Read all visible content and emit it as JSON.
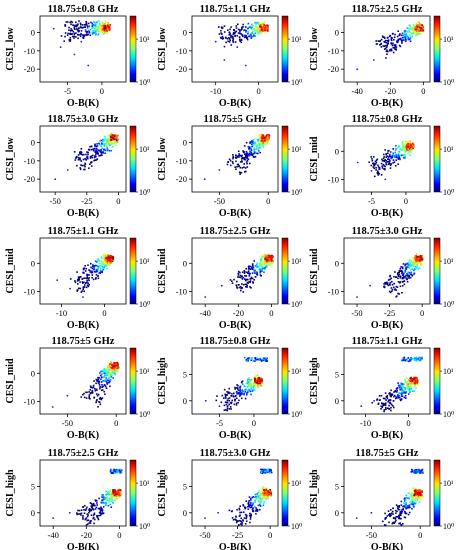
{
  "chart_data": [
    {
      "type": "heatmap",
      "title": "118.75±0.8 GHz",
      "xlabel": "O-B(K)",
      "ylabel": "CESI_low",
      "xticks": [
        -5,
        0
      ],
      "xlim": [
        -9,
        3.5
      ],
      "yticks": [
        0,
        -10,
        -20
      ],
      "ylim": [
        -27,
        9
      ],
      "colorbar_ticks": [
        "10¹",
        "10⁰"
      ],
      "colorbar_range": [
        1,
        70
      ],
      "colorscale": "jet",
      "hotspot": {
        "x": 0.5,
        "y": 3
      },
      "cloud_direction": {
        "x": -1,
        "y": -0.3
      },
      "scatter_points": [
        {
          "x": -3,
          "y": -5
        },
        {
          "x": -4,
          "y": -12
        },
        {
          "x": -6,
          "y": -8
        },
        {
          "x": -2,
          "y": -18
        },
        {
          "x": -7,
          "y": 2
        }
      ]
    },
    {
      "type": "heatmap",
      "title": "118.75±1.1 GHz",
      "xlabel": "O-B(K)",
      "ylabel": "CESI_low",
      "xticks": [
        -10,
        0
      ],
      "xlim": [
        -15.5,
        4.5
      ],
      "yticks": [
        0,
        -10,
        -20
      ],
      "ylim": [
        -27,
        9
      ],
      "colorbar_ticks": [
        "10¹",
        "10⁰"
      ],
      "colorbar_range": [
        1,
        70
      ],
      "colorscale": "jet",
      "hotspot": {
        "x": 1,
        "y": 3
      },
      "cloud_direction": {
        "x": -1,
        "y": -0.5
      },
      "scatter_points": [
        {
          "x": -5,
          "y": -8
        },
        {
          "x": -8,
          "y": -15
        },
        {
          "x": -3,
          "y": -18
        },
        {
          "x": -10,
          "y": -5
        }
      ]
    },
    {
      "type": "heatmap",
      "title": "118.75±2.5 GHz",
      "xlabel": "O-B(K)",
      "ylabel": "CESI_low",
      "xticks": [
        -40,
        -20,
        0
      ],
      "xlim": [
        -48,
        4
      ],
      "yticks": [
        0,
        -10,
        -20
      ],
      "ylim": [
        -27,
        9
      ],
      "colorbar_ticks": [
        "10¹",
        "10⁰"
      ],
      "colorbar_range": [
        1,
        70
      ],
      "colorscale": "jet",
      "hotspot": {
        "x": -3,
        "y": 3
      },
      "cloud_direction": {
        "x": -1,
        "y": -0.5
      },
      "scatter_points": [
        {
          "x": -30,
          "y": -15
        },
        {
          "x": -40,
          "y": -20
        },
        {
          "x": -20,
          "y": -10
        }
      ]
    },
    {
      "type": "heatmap",
      "title": "118.75±3.0 GHz",
      "xlabel": "O-B(K)",
      "ylabel": "CESI_low",
      "xticks": [
        -50,
        -25,
        0
      ],
      "xlim": [
        -62,
        6
      ],
      "yticks": [
        0,
        -10,
        -20
      ],
      "ylim": [
        -27,
        9
      ],
      "colorbar_ticks": [
        "10¹",
        "10⁰"
      ],
      "colorbar_range": [
        1,
        70
      ],
      "colorscale": "jet",
      "hotspot": {
        "x": -4,
        "y": 3
      },
      "cloud_direction": {
        "x": -1,
        "y": -0.5
      },
      "scatter_points": [
        {
          "x": -40,
          "y": -15
        },
        {
          "x": -50,
          "y": -20
        },
        {
          "x": -25,
          "y": -8
        }
      ]
    },
    {
      "type": "heatmap",
      "title": "118.75±5 GHz",
      "xlabel": "O-B(K)",
      "ylabel": "CESI_low",
      "xticks": [
        -50,
        0
      ],
      "xlim": [
        -78,
        10
      ],
      "yticks": [
        0,
        -10,
        -20
      ],
      "ylim": [
        -27,
        9
      ],
      "colorbar_ticks": [
        "10¹",
        "10⁰"
      ],
      "colorbar_range": [
        1,
        70
      ],
      "colorscale": "jet",
      "hotspot": {
        "x": -4,
        "y": 3
      },
      "cloud_direction": {
        "x": -1,
        "y": -0.5
      },
      "scatter_points": [
        {
          "x": -50,
          "y": -15
        },
        {
          "x": -65,
          "y": -20
        },
        {
          "x": -30,
          "y": -8
        }
      ]
    },
    {
      "type": "heatmap",
      "title": "118.75±0.8 GHz",
      "xlabel": "O-B(K)",
      "ylabel": "CESI_mid",
      "xticks": [
        -5,
        0
      ],
      "xlim": [
        -9,
        3.5
      ],
      "yticks": [
        0,
        -10
      ],
      "ylim": [
        -14.5,
        9
      ],
      "colorbar_ticks": [
        "10¹",
        "10⁰"
      ],
      "colorbar_range": [
        1,
        70
      ],
      "colorscale": "jet",
      "hotspot": {
        "x": 0.5,
        "y": 2
      },
      "cloud_direction": {
        "x": -1,
        "y": -1.4
      },
      "scatter_points": [
        {
          "x": -5,
          "y": -7
        },
        {
          "x": -3,
          "y": -10
        },
        {
          "x": -7,
          "y": -4
        }
      ]
    },
    {
      "type": "heatmap",
      "title": "118.75±1.1 GHz",
      "xlabel": "O-B(K)",
      "ylabel": "CESI_mid",
      "xticks": [
        -10,
        0
      ],
      "xlim": [
        -15,
        5
      ],
      "yticks": [
        0,
        -10
      ],
      "ylim": [
        -14.5,
        9
      ],
      "colorbar_ticks": [
        "10¹",
        "10⁰"
      ],
      "colorbar_range": [
        1,
        70
      ],
      "colorscale": "jet",
      "hotspot": {
        "x": 1,
        "y": 2
      },
      "cloud_direction": {
        "x": -1,
        "y": -1.2
      },
      "scatter_points": [
        {
          "x": -8,
          "y": -9
        },
        {
          "x": -11,
          "y": -6
        },
        {
          "x": -5,
          "y": -12
        }
      ]
    },
    {
      "type": "heatmap",
      "title": "118.75±2.5 GHz",
      "xlabel": "O-B(K)",
      "ylabel": "CESI_mid",
      "xticks": [
        -40,
        -20,
        0
      ],
      "xlim": [
        -48,
        4
      ],
      "yticks": [
        0,
        -10
      ],
      "ylim": [
        -14.5,
        9
      ],
      "colorbar_ticks": [
        "10¹",
        "10⁰"
      ],
      "colorbar_range": [
        1,
        70
      ],
      "colorscale": "jet",
      "hotspot": {
        "x": -2,
        "y": 2
      },
      "cloud_direction": {
        "x": -1,
        "y": -0.5
      },
      "scatter_points": [
        {
          "x": -30,
          "y": -8
        },
        {
          "x": -40,
          "y": -12
        }
      ]
    },
    {
      "type": "heatmap",
      "title": "118.75±3.0 GHz",
      "xlabel": "O-B(K)",
      "ylabel": "CESI_mid",
      "xticks": [
        -50,
        -25,
        0
      ],
      "xlim": [
        -60,
        6
      ],
      "yticks": [
        0,
        -10
      ],
      "ylim": [
        -14.5,
        9
      ],
      "colorbar_ticks": [
        "10¹",
        "10⁰"
      ],
      "colorbar_range": [
        1,
        70
      ],
      "colorscale": "jet",
      "hotspot": {
        "x": -3,
        "y": 2
      },
      "cloud_direction": {
        "x": -1,
        "y": -0.5
      },
      "scatter_points": [
        {
          "x": -40,
          "y": -8
        },
        {
          "x": -50,
          "y": -12
        }
      ]
    },
    {
      "type": "heatmap",
      "title": "118.75±5 GHz",
      "xlabel": "O-B(K)",
      "ylabel": "CESI_mid",
      "xticks": [
        -50,
        0
      ],
      "xlim": [
        -78,
        10
      ],
      "yticks": [
        0,
        -10
      ],
      "ylim": [
        -14.5,
        9
      ],
      "colorbar_ticks": [
        "10¹",
        "10⁰"
      ],
      "colorbar_range": [
        1,
        70
      ],
      "colorscale": "jet",
      "hotspot": {
        "x": -3,
        "y": 3
      },
      "cloud_direction": {
        "x": -1,
        "y": -0.5
      },
      "scatter_points": [
        {
          "x": -50,
          "y": -8
        },
        {
          "x": -65,
          "y": -12
        }
      ]
    },
    {
      "type": "heatmap",
      "title": "118.75±0.8 GHz",
      "xlabel": "O-B(K)",
      "ylabel": "CESI_high",
      "xticks": [
        -5,
        0
      ],
      "xlim": [
        -9,
        3.5
      ],
      "yticks": [
        0,
        5
      ],
      "ylim": [
        -2.5,
        10
      ],
      "colorbar_ticks": [
        "10¹",
        "10⁰"
      ],
      "colorbar_range": [
        1,
        70
      ],
      "colorscale": "jet",
      "hotspot": {
        "x": 0.5,
        "y": 4
      },
      "cloud_direction": {
        "x": -1,
        "y": -0.8
      },
      "scatter_points": [
        {
          "x": -3,
          "y": 1
        },
        {
          "x": -5,
          "y": -1
        },
        {
          "x": -7,
          "y": 0
        }
      ],
      "upper_cluster": {
        "x": [
          -1.5,
          2
        ],
        "y": 8
      }
    },
    {
      "type": "heatmap",
      "title": "118.75±1.1 GHz",
      "xlabel": "O-B(K)",
      "ylabel": "CESI_high",
      "xticks": [
        -10,
        0
      ],
      "xlim": [
        -15,
        5
      ],
      "yticks": [
        0,
        5
      ],
      "ylim": [
        -2.5,
        10
      ],
      "colorbar_ticks": [
        "10¹",
        "10⁰"
      ],
      "colorbar_range": [
        1,
        70
      ],
      "colorscale": "jet",
      "hotspot": {
        "x": 1,
        "y": 4
      },
      "cloud_direction": {
        "x": -1,
        "y": -0.7
      },
      "scatter_points": [
        {
          "x": -8,
          "y": 0
        },
        {
          "x": -11,
          "y": -1
        }
      ],
      "upper_cluster": {
        "x": [
          -2,
          3
        ],
        "y": 8
      }
    },
    {
      "type": "heatmap",
      "title": "118.75±2.5 GHz",
      "xlabel": "O-B(K)",
      "ylabel": "CESI_high",
      "xticks": [
        -40,
        -20,
        0
      ],
      "xlim": [
        -48,
        4
      ],
      "yticks": [
        0,
        5
      ],
      "ylim": [
        -2.5,
        10
      ],
      "colorbar_ticks": [
        "10¹",
        "10⁰"
      ],
      "colorbar_range": [
        1,
        70
      ],
      "colorscale": "jet",
      "hotspot": {
        "x": -2,
        "y": 4
      },
      "cloud_direction": {
        "x": -1,
        "y": -0.25
      },
      "scatter_points": [
        {
          "x": -30,
          "y": 0
        },
        {
          "x": -40,
          "y": -1
        }
      ],
      "upper_cluster": {
        "x": [
          -6,
          1
        ],
        "y": 8
      }
    },
    {
      "type": "heatmap",
      "title": "118.75±3.0 GHz",
      "xlabel": "O-B(K)",
      "ylabel": "CESI_high",
      "xticks": [
        -50,
        -25,
        0
      ],
      "xlim": [
        -60,
        6
      ],
      "yticks": [
        0,
        5
      ],
      "ylim": [
        -2.5,
        10
      ],
      "colorbar_ticks": [
        "10¹",
        "10⁰"
      ],
      "colorbar_range": [
        1,
        70
      ],
      "colorscale": "jet",
      "hotspot": {
        "x": -3,
        "y": 4
      },
      "cloud_direction": {
        "x": -1,
        "y": -0.22
      },
      "scatter_points": [
        {
          "x": -40,
          "y": 0
        },
        {
          "x": -50,
          "y": -1
        }
      ],
      "upper_cluster": {
        "x": [
          -8,
          1
        ],
        "y": 8
      }
    },
    {
      "type": "heatmap",
      "title": "118.75±5 GHz",
      "xlabel": "O-B(K)",
      "ylabel": "CESI_high",
      "xticks": [
        -50,
        0
      ],
      "xlim": [
        -78,
        10
      ],
      "yticks": [
        0,
        5
      ],
      "ylim": [
        -2.5,
        10
      ],
      "colorbar_ticks": [
        "10¹",
        "10⁰"
      ],
      "colorbar_range": [
        1,
        70
      ],
      "colorscale": "jet",
      "hotspot": {
        "x": -3,
        "y": 4
      },
      "cloud_direction": {
        "x": -1,
        "y": -0.2
      },
      "scatter_points": [
        {
          "x": -50,
          "y": 0
        },
        {
          "x": -65,
          "y": -1
        }
      ],
      "upper_cluster": {
        "x": [
          -10,
          2
        ],
        "y": 8
      }
    }
  ]
}
